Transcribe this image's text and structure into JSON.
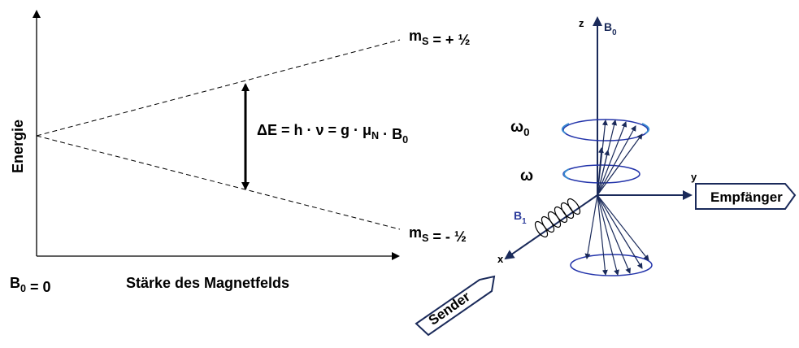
{
  "energy_diagram": {
    "y_axis_label": "Energie",
    "x_axis_label": "Stärke des Magnetfelds",
    "origin_label": [
      {
        "text": "B",
        "sub": "0"
      },
      {
        "text": " = 0"
      }
    ],
    "upper_level": [
      {
        "text": "m",
        "sub": "S"
      },
      {
        "text": " = + ½"
      }
    ],
    "lower_level": [
      {
        "text": "m",
        "sub": "S"
      },
      {
        "text": " = - ½"
      }
    ],
    "splitting": [
      {
        "text": "ΔE = h · ν = g · μ",
        "sub": "N"
      },
      {
        "text": " · B",
        "sub": "0"
      }
    ]
  },
  "precession_diagram": {
    "z_axis": "z",
    "z_field": [
      {
        "text": "B",
        "sub": "0"
      }
    ],
    "y_axis": "y",
    "x_axis": "x",
    "larmor_frequency": [
      {
        "text": "ω",
        "sub": "0"
      }
    ],
    "rf_frequency": [
      {
        "text": "ω"
      }
    ],
    "rf_field": [
      {
        "text": "B",
        "sub": "1"
      }
    ],
    "receiver": "Empfänger",
    "transmitter": "Sender"
  }
}
